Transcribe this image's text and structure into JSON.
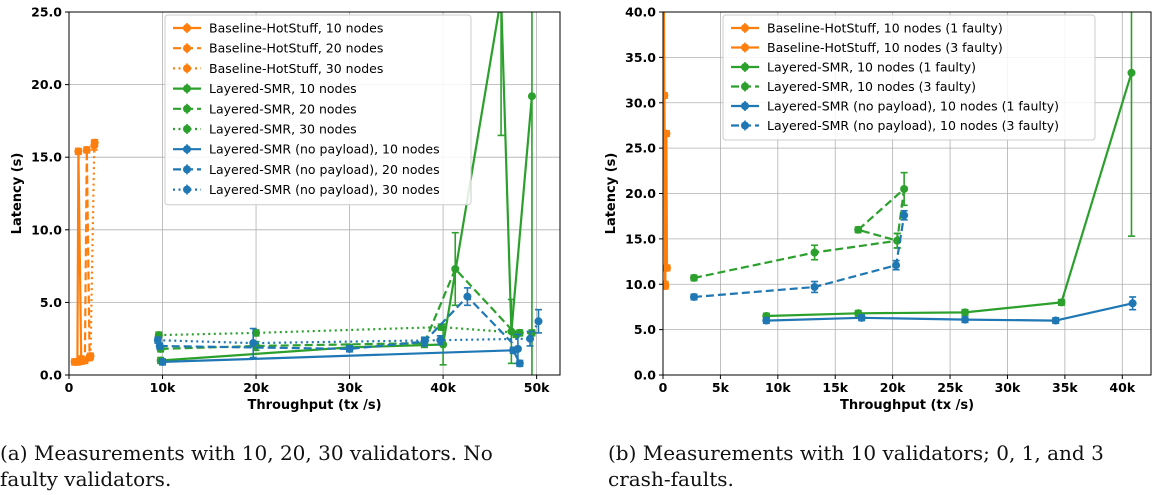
{
  "figure": {
    "captions": [
      {
        "line1": "(a) Measurements with 10, 20, 30 validators.  No",
        "line2": "faulty validators."
      },
      {
        "line1": "(b) Measurements with 10 validators; 0, 1, and 3",
        "line2": "crash-faults."
      }
    ]
  },
  "colors": {
    "orange": "#ff7f0e",
    "green": "#2ca02c",
    "blue": "#1f77b4"
  },
  "chart_data": [
    {
      "type": "line",
      "xlabel": "Throughput (tx /s)",
      "ylabel": "Latency (s)",
      "xlim": [
        0,
        52500
      ],
      "ylim": [
        0,
        25
      ],
      "xticks": [
        0,
        10000,
        20000,
        30000,
        40000,
        50000
      ],
      "xtick_labels": [
        "0",
        "10k",
        "20k",
        "30k",
        "40k",
        "50k"
      ],
      "yticks": [
        0,
        5,
        10,
        15,
        20,
        25
      ],
      "ytick_labels": [
        "0.0",
        "5.0",
        "10.0",
        "15.0",
        "20.0",
        "25.0"
      ],
      "grid": true,
      "legend_position": "top-center",
      "series": [
        {
          "name": "Baseline-HotStuff, 10 nodes",
          "color": "orange",
          "style": "solid",
          "points": [
            [
              600,
              0.9,
              0.2
            ],
            [
              900,
              0.9,
              0.2
            ],
            [
              1000,
              15.4,
              0.2
            ],
            [
              1300,
              1.1,
              0.2
            ]
          ]
        },
        {
          "name": "Baseline-HotStuff, 20 nodes",
          "color": "orange",
          "style": "dashed",
          "points": [
            [
              1300,
              0.95,
              0.2
            ],
            [
              1700,
              1.0,
              0.2
            ],
            [
              1900,
              15.5,
              0.2
            ],
            [
              2200,
              1.2,
              0.2
            ]
          ]
        },
        {
          "name": "Baseline-HotStuff, 30 nodes",
          "color": "orange",
          "style": "dotted",
          "points": [
            [
              2300,
              1.3,
              0.2
            ],
            [
              2700,
              15.8,
              0.3
            ],
            [
              2750,
              16.0,
              0.2
            ]
          ]
        },
        {
          "name": "Layered-SMR, 10 nodes",
          "color": "green",
          "style": "solid",
          "points": [
            [
              9800,
              1.0,
              0.2
            ],
            [
              30000,
              1.9,
              0.2
            ],
            [
              40000,
              2.1,
              1.4
            ],
            [
              46200,
              26.0,
              9.5
            ],
            [
              47300,
              3.0,
              2.2
            ],
            [
              49500,
              19.2,
              20.0
            ]
          ]
        },
        {
          "name": "Layered-SMR, 20 nodes",
          "color": "green",
          "style": "dashed",
          "points": [
            [
              9800,
              1.8,
              0.2
            ],
            [
              20000,
              2.0,
              0.3
            ],
            [
              38000,
              2.2,
              0.3
            ],
            [
              41300,
              7.3,
              2.5
            ],
            [
              47800,
              2.8,
              0.2
            ]
          ]
        },
        {
          "name": "Layered-SMR, 30 nodes",
          "color": "green",
          "style": "dotted",
          "points": [
            [
              9600,
              2.75,
              0.2
            ],
            [
              20000,
              2.9,
              0.2
            ],
            [
              39800,
              3.3,
              0.2
            ],
            [
              48200,
              2.9,
              0.2
            ],
            [
              49500,
              2.9,
              0.2
            ]
          ]
        },
        {
          "name": "Layered-SMR (no payload), 10 nodes",
          "color": "blue",
          "style": "solid",
          "points": [
            [
              10000,
              0.9,
              0.2
            ],
            [
              47500,
              1.7,
              0.2
            ],
            [
              48200,
              0.8,
              0.2
            ]
          ]
        },
        {
          "name": "Layered-SMR (no payload), 20 nodes",
          "color": "blue",
          "style": "dashed",
          "points": [
            [
              9700,
              2.0,
              0.2
            ],
            [
              30000,
              1.8,
              0.2
            ],
            [
              38000,
              2.3,
              0.3
            ],
            [
              42600,
              5.4,
              0.6
            ],
            [
              48000,
              1.8,
              1.0
            ]
          ]
        },
        {
          "name": "Layered-SMR (no payload), 30 nodes",
          "color": "blue",
          "style": "dotted",
          "points": [
            [
              9500,
              2.4,
              0.2
            ],
            [
              19700,
              2.2,
              1.0
            ],
            [
              39700,
              2.4,
              0.3
            ],
            [
              49300,
              2.5,
              0.5
            ],
            [
              50200,
              3.7,
              0.8
            ]
          ]
        }
      ]
    },
    {
      "type": "line",
      "xlabel": "Throughput (tx /s)",
      "ylabel": "Latency (s)",
      "xlim": [
        0,
        42500
      ],
      "ylim": [
        0,
        40
      ],
      "xticks": [
        0,
        5000,
        10000,
        15000,
        20000,
        25000,
        30000,
        35000,
        40000
      ],
      "xtick_labels": [
        "0",
        "5k",
        "10k",
        "15k",
        "20k",
        "25k",
        "30k",
        "35k",
        "40k"
      ],
      "yticks": [
        0,
        5,
        10,
        15,
        20,
        25,
        30,
        35,
        40
      ],
      "ytick_labels": [
        "0.0",
        "5.0",
        "10.0",
        "15.0",
        "20.0",
        "25.0",
        "30.0",
        "35.0",
        "40.0"
      ],
      "grid": true,
      "legend_position": "top-center",
      "series": [
        {
          "name": "Baseline-HotStuff, 10 nodes (1 faulty)",
          "color": "orange",
          "style": "solid",
          "points": [
            [
              80,
              40.5,
              0.3
            ],
            [
              120,
              30.8,
              0.3
            ],
            [
              180,
              10.0,
              0.3
            ]
          ]
        },
        {
          "name": "Baseline-HotStuff, 10 nodes (3 faulty)",
          "color": "orange",
          "style": "solid",
          "points": [
            [
              200,
              9.8,
              0.3
            ],
            [
              300,
              26.6,
              0.3
            ],
            [
              350,
              11.8,
              0.3
            ]
          ]
        },
        {
          "name": "Layered-SMR, 10 nodes (1 faulty)",
          "color": "green",
          "style": "solid",
          "points": [
            [
              9000,
              6.5,
              0.3
            ],
            [
              17000,
              6.8,
              0.3
            ],
            [
              26300,
              6.9,
              0.3
            ],
            [
              34700,
              8.0,
              0.3
            ],
            [
              40800,
              33.3,
              18.0
            ]
          ]
        },
        {
          "name": "Layered-SMR, 10 nodes (3 faulty)",
          "color": "green",
          "style": "dashed",
          "points": [
            [
              2700,
              10.7,
              0.3
            ],
            [
              13200,
              13.5,
              0.8
            ],
            [
              20400,
              14.8,
              0.8
            ],
            [
              21000,
              20.5,
              1.8
            ],
            [
              17000,
              16.0,
              0.3
            ],
            [
              20400,
              14.8,
              0.8
            ]
          ]
        },
        {
          "name": "Layered-SMR (no payload), 10 nodes (1 faulty)",
          "color": "blue",
          "style": "solid",
          "points": [
            [
              9000,
              6.0,
              0.3
            ],
            [
              17300,
              6.3,
              0.3
            ],
            [
              26300,
              6.1,
              0.3
            ],
            [
              34200,
              6.0,
              0.3
            ],
            [
              40900,
              7.9,
              0.7
            ]
          ]
        },
        {
          "name": "Layered-SMR (no payload), 10 nodes (3 faulty)",
          "color": "blue",
          "style": "dashed",
          "points": [
            [
              2700,
              8.6,
              0.3
            ],
            [
              13200,
              9.7,
              0.6
            ],
            [
              20300,
              12.1,
              0.5
            ],
            [
              21000,
              17.6,
              0.5
            ]
          ]
        }
      ]
    }
  ]
}
